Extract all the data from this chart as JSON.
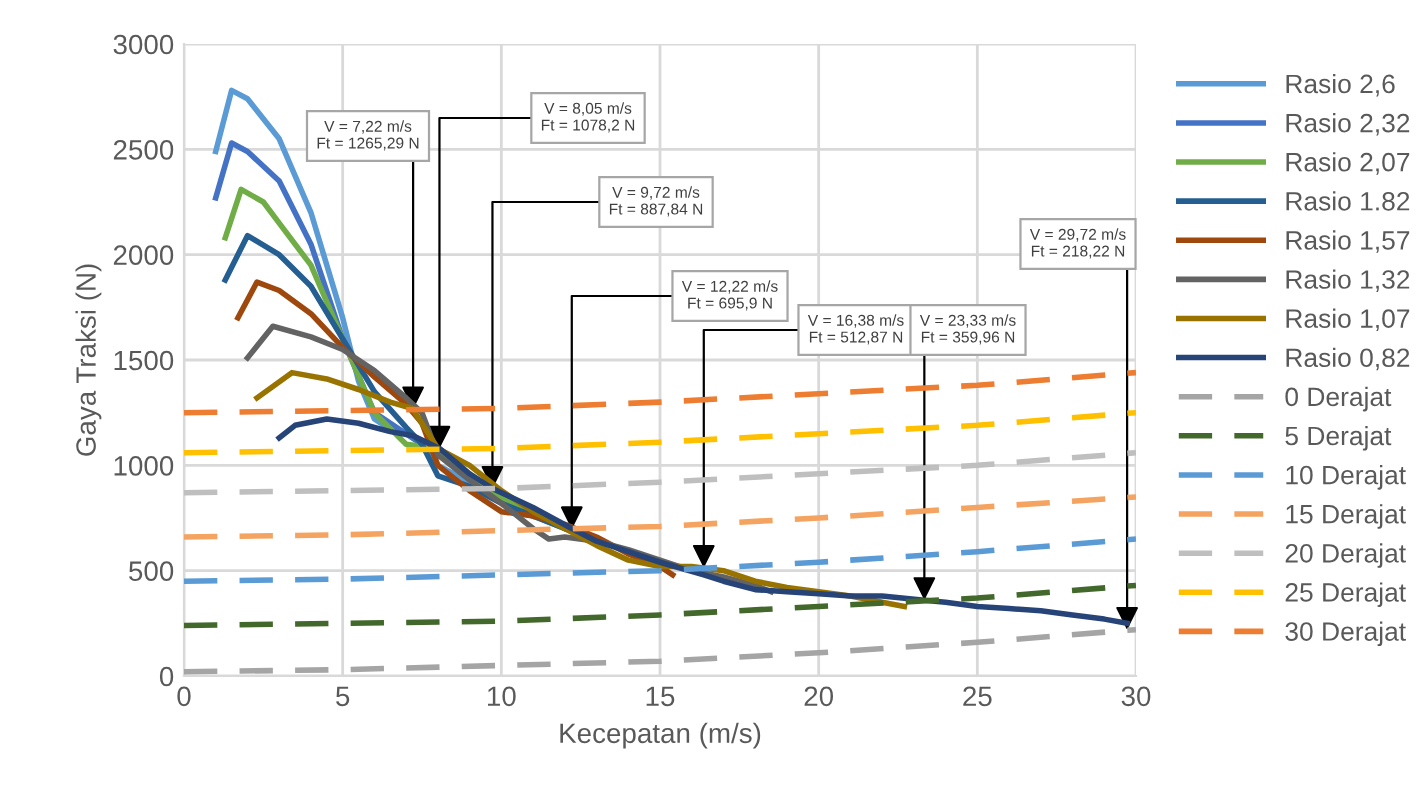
{
  "chart_data": {
    "type": "line",
    "xlabel": "Kecepatan (m/s)",
    "ylabel": "Gaya Traksi (N)",
    "xlim": [
      0,
      30
    ],
    "ylim": [
      0,
      3000
    ],
    "xticks": [
      0,
      5,
      10,
      15,
      20,
      25,
      30
    ],
    "yticks": [
      0,
      500,
      1000,
      1500,
      2000,
      2500,
      3000
    ],
    "grid": true,
    "legend": "right",
    "marker": "none",
    "series": [
      {
        "name": "Rasio 2,6",
        "color": "#5b9bd5",
        "line_style": "solid",
        "x": [
          1.0,
          1.5,
          2,
          3,
          4,
          5,
          5.5,
          6,
          6.5,
          7,
          7.5,
          8,
          9,
          10
        ],
        "values": [
          2490,
          2780,
          2740,
          2550,
          2200,
          1700,
          1400,
          1220,
          1170,
          1150,
          1100,
          1000,
          920,
          830
        ]
      },
      {
        "name": "Rasio 2,32",
        "color": "#4472c4",
        "line_style": "solid",
        "x": [
          1.0,
          1.5,
          2,
          3,
          4,
          5,
          6,
          7,
          7.5,
          8,
          9,
          10,
          11
        ],
        "values": [
          2270,
          2530,
          2490,
          2350,
          2050,
          1600,
          1250,
          1150,
          1100,
          1050,
          950,
          850,
          760
        ]
      },
      {
        "name": "Rasio 2,07",
        "color": "#70ad47",
        "line_style": "solid",
        "x": [
          1.3,
          1.8,
          2.5,
          3,
          4,
          5,
          6,
          7,
          7.5,
          8,
          9,
          10,
          11,
          12
        ],
        "values": [
          2080,
          2310,
          2250,
          2150,
          1950,
          1600,
          1250,
          1100,
          1090,
          1060,
          950,
          850,
          760,
          700
        ]
      },
      {
        "name": "Rasio 1.82",
        "color": "#255e91",
        "line_style": "solid",
        "x": [
          1.3,
          2,
          3,
          4,
          5,
          6,
          7,
          7.5,
          8,
          9,
          10,
          11,
          12,
          13
        ],
        "values": [
          1880,
          2090,
          2000,
          1850,
          1600,
          1350,
          1180,
          1100,
          950,
          900,
          820,
          760,
          700,
          650
        ]
      },
      {
        "name": "Rasio 1,57",
        "color": "#9e480e",
        "line_style": "solid",
        "x": [
          1.7,
          2.3,
          3,
          4,
          5,
          6,
          7,
          7.5,
          8,
          9,
          10,
          11,
          12,
          13,
          14,
          15,
          15.4
        ],
        "values": [
          1700,
          1870,
          1830,
          1720,
          1560,
          1420,
          1290,
          1200,
          1000,
          880,
          780,
          760,
          720,
          660,
          580,
          520,
          480
        ]
      },
      {
        "name": "Rasio 1,32",
        "color": "#636363",
        "line_style": "solid",
        "x": [
          2,
          2.8,
          4,
          5,
          6,
          7,
          7.5,
          8,
          9,
          10,
          11,
          11.5,
          12,
          13,
          14,
          15,
          16,
          17,
          18,
          18.5
        ],
        "values": [
          1510,
          1660,
          1610,
          1550,
          1450,
          1320,
          1250,
          1050,
          930,
          820,
          700,
          650,
          660,
          640,
          600,
          550,
          500,
          470,
          430,
          400
        ]
      },
      {
        "name": "Rasio 1,07",
        "color": "#997300",
        "line_style": "solid",
        "x": [
          2.3,
          3.4,
          4.5,
          5.5,
          6.5,
          7.2,
          8,
          9,
          10,
          11,
          12,
          13,
          14,
          15,
          16,
          17,
          18,
          19,
          20,
          21,
          22,
          22.7
        ],
        "values": [
          1320,
          1440,
          1410,
          1360,
          1300,
          1270,
          1080,
          1000,
          880,
          780,
          700,
          620,
          550,
          520,
          520,
          500,
          450,
          420,
          400,
          380,
          350,
          330
        ]
      },
      {
        "name": "Rasio 0,82",
        "color": "#264478",
        "line_style": "solid",
        "x": [
          3,
          3.5,
          4.5,
          5.5,
          6.5,
          7.22,
          8.05,
          9,
          9.72,
          11,
          12.22,
          13,
          14,
          15,
          16.38,
          17,
          18,
          19,
          20,
          21,
          22,
          23.33,
          24,
          25,
          26,
          27,
          28,
          29,
          29.72
        ],
        "values": [
          1130,
          1190,
          1220,
          1200,
          1160,
          1140,
          1080,
          960,
          890,
          800,
          700,
          640,
          590,
          540,
          480,
          450,
          410,
          400,
          390,
          380,
          380,
          360,
          350,
          330,
          320,
          310,
          290,
          270,
          250
        ]
      },
      {
        "name": "0 Derajat",
        "color": "#a5a5a5",
        "line_style": "dashed",
        "x": [
          0,
          5,
          10,
          15,
          20,
          25,
          30
        ],
        "values": [
          20,
          30,
          50,
          70,
          110,
          160,
          220
        ]
      },
      {
        "name": "5 Derajat",
        "color": "#43682b",
        "line_style": "dashed",
        "x": [
          0,
          5,
          10,
          15,
          20,
          25,
          30
        ],
        "values": [
          240,
          250,
          260,
          290,
          330,
          370,
          430
        ]
      },
      {
        "name": "10 Derajat",
        "color": "#5b9bd5",
        "line_style": "dashed",
        "x": [
          0,
          5,
          10,
          15,
          20,
          25,
          30
        ],
        "values": [
          450,
          460,
          480,
          500,
          540,
          590,
          650
        ]
      },
      {
        "name": "15 Derajat",
        "color": "#f4a460",
        "line_style": "dashed",
        "x": [
          0,
          5,
          10,
          15,
          20,
          25,
          30
        ],
        "values": [
          660,
          670,
          690,
          710,
          750,
          800,
          850
        ]
      },
      {
        "name": "20 Derajat",
        "color": "#bfbfbf",
        "line_style": "dashed",
        "x": [
          0,
          5,
          10,
          15,
          20,
          25,
          30
        ],
        "values": [
          870,
          880,
          890,
          920,
          960,
          1000,
          1060
        ]
      },
      {
        "name": "25 Derajat",
        "color": "#ffc000",
        "line_style": "dashed",
        "x": [
          0,
          5,
          10,
          15,
          20,
          25,
          30
        ],
        "values": [
          1060,
          1070,
          1080,
          1110,
          1150,
          1190,
          1250
        ]
      },
      {
        "name": "30 Derajat",
        "color": "#ed7d31",
        "line_style": "dashed",
        "x": [
          0,
          5,
          10,
          15,
          20,
          25,
          30
        ],
        "values": [
          1250,
          1260,
          1270,
          1300,
          1340,
          1380,
          1440
        ]
      }
    ],
    "annotations": [
      {
        "text": "V = 7,22 m/s\nFt = 1265,29 N",
        "x": 7.22,
        "y": 1265.29
      },
      {
        "text": "V = 8,05 m/s\nFt = 1078,2 N",
        "x": 8.05,
        "y": 1078.2
      },
      {
        "text": "V = 9,72 m/s\nFt = 887,84 N",
        "x": 9.72,
        "y": 887.84
      },
      {
        "text": "V = 12,22 m/s\nFt = 695,9 N",
        "x": 12.22,
        "y": 695.9
      },
      {
        "text": "V = 16,38 m/s\nFt = 512,87 N",
        "x": 16.38,
        "y": 512.87
      },
      {
        "text": "V = 23,33 m/s\nFt = 359,96 N",
        "x": 23.33,
        "y": 359.96
      },
      {
        "text": "V = 29,72 m/s\nFt = 218,22 N",
        "x": 29.72,
        "y": 218.22
      }
    ]
  }
}
